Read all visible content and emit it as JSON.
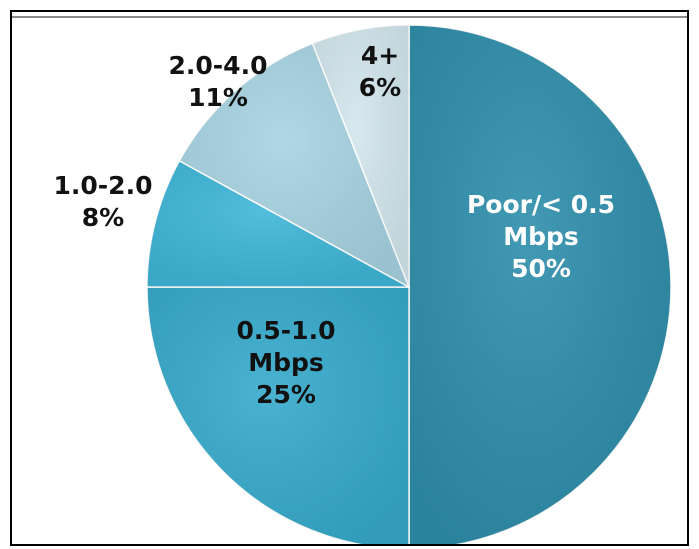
{
  "chart_data": {
    "type": "pie",
    "title": "",
    "slices": [
      {
        "label": "Poor/< 0.5",
        "unit": "Mbps",
        "value": 50,
        "value_label": "50%",
        "color": "#2e8eab",
        "label_color": "#ffffff"
      },
      {
        "label": "0.5-1.0",
        "unit": "Mbps",
        "value": 25,
        "value_label": "25%",
        "color": "#37aacc",
        "label_color": "#111111"
      },
      {
        "label": "1.0-2.0",
        "unit": "",
        "value": 8,
        "value_label": "8%",
        "color": "#3fb6d8",
        "label_color": "#111111"
      },
      {
        "label": "2.0-4.0",
        "unit": "",
        "value": 11,
        "value_label": "11%",
        "color": "#a7d3e2",
        "label_color": "#111111"
      },
      {
        "label": "4+",
        "unit": "",
        "value": 6,
        "value_label": "6%",
        "color": "#d3e7ee",
        "label_color": "#111111"
      }
    ],
    "start": "12 o'clock",
    "direction": "clockwise",
    "legend": "none",
    "style": {
      "frame_color": "#000000",
      "top_rule_color": "#8a8a8a",
      "slice_edge_color": "#ffffff"
    }
  }
}
